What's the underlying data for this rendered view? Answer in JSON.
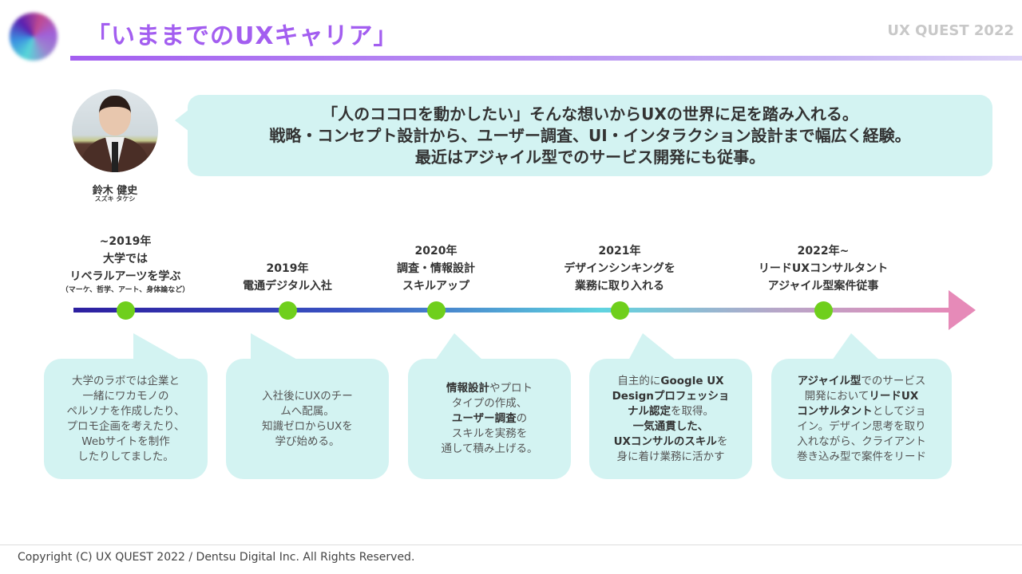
{
  "header": {
    "title": "「いままでのUXキャリア」",
    "brand": "UX QUEST 2022",
    "accent": "#a35ef0"
  },
  "profile": {
    "name": "鈴木 健史",
    "kana": "スズキ タケシ",
    "photo_icon": "person-photo"
  },
  "intro": [
    "「人のココロを動かしたい」そんな想いからUXの世界に足を踏み入れる。",
    "戦略・コンセプト設計から、ユーザー調査、UI・インタラクション設計まで幅広く経験。",
    "最近はアジャイル型でのサービス開発にも従事。"
  ],
  "timeline": [
    {
      "label": [
        "~2019年",
        "大学では",
        "リベラルアーツを学ぶ"
      ],
      "note": "（マーケ、哲学、アート、身体論など）",
      "card": [
        [
          {
            "t": "大学のラボでは企業と"
          }
        ],
        [
          {
            "t": "一緒にワカモノの"
          }
        ],
        [
          {
            "t": "ペルソナを作成したり、"
          }
        ],
        [
          {
            "t": "プロモ企画を考えたり、"
          }
        ],
        [
          {
            "t": "Webサイトを制作"
          }
        ],
        [
          {
            "t": "したりしてました。"
          }
        ]
      ]
    },
    {
      "label": [
        "2019年",
        "電通デジタル入社"
      ],
      "card": [
        [
          {
            "t": "入社後にUXのチー"
          }
        ],
        [
          {
            "t": "ムへ配属。"
          }
        ],
        [
          {
            "t": "知識ゼロからUXを"
          }
        ],
        [
          {
            "t": "学び始める。"
          }
        ]
      ]
    },
    {
      "label": [
        "2020年",
        "調査・情報設計",
        "スキルアップ"
      ],
      "card": [
        [
          {
            "t": "情報設計",
            "b": true
          },
          {
            "t": "やプロト"
          }
        ],
        [
          {
            "t": "タイプの作成、"
          }
        ],
        [
          {
            "t": "ユーザー調査",
            "b": true
          },
          {
            "t": "の"
          }
        ],
        [
          {
            "t": "スキルを実務を"
          }
        ],
        [
          {
            "t": "通して積み上げる。"
          }
        ]
      ]
    },
    {
      "label": [
        "2021年",
        "デザインシンキングを",
        "業務に取り入れる"
      ],
      "card": [
        [
          {
            "t": "自主的に"
          },
          {
            "t": "Google UX",
            "b": true
          }
        ],
        [
          {
            "t": "Designプロフェッショ",
            "b": true
          }
        ],
        [
          {
            "t": "ナル認定",
            "b": true
          },
          {
            "t": "を取得。"
          }
        ],
        [
          {
            "t": "一気通貫した、",
            "b": true
          }
        ],
        [
          {
            "t": "UXコンサルのスキル",
            "b": true
          },
          {
            "t": "を"
          }
        ],
        [
          {
            "t": "身に着け業務に活かす"
          }
        ]
      ]
    },
    {
      "label": [
        "2022年~",
        "リードUXコンサルタント",
        "アジャイル型案件従事"
      ],
      "card": [
        [
          {
            "t": "アジャイル型",
            "b": true
          },
          {
            "t": "でのサービス"
          }
        ],
        [
          {
            "t": "開発において"
          },
          {
            "t": "リードUX",
            "b": true
          }
        ],
        [
          {
            "t": "コンサルタント",
            "b": true
          },
          {
            "t": "としてジョ"
          }
        ],
        [
          {
            "t": "イン。デザイン思考を取り"
          }
        ],
        [
          {
            "t": "入れながら、クライアント"
          }
        ],
        [
          {
            "t": "巻き込み型で案件をリード"
          }
        ]
      ]
    }
  ],
  "colors": {
    "dot": "#6fcf1c",
    "card_bg": "#d3f3f2",
    "line_start": "#2d1fa0",
    "line_mid": "#5fd4e0",
    "line_end": "#e68ab8"
  },
  "footer": "Copyright (C) UX QUEST 2022 / Dentsu Digital Inc. All Rights Reserved."
}
